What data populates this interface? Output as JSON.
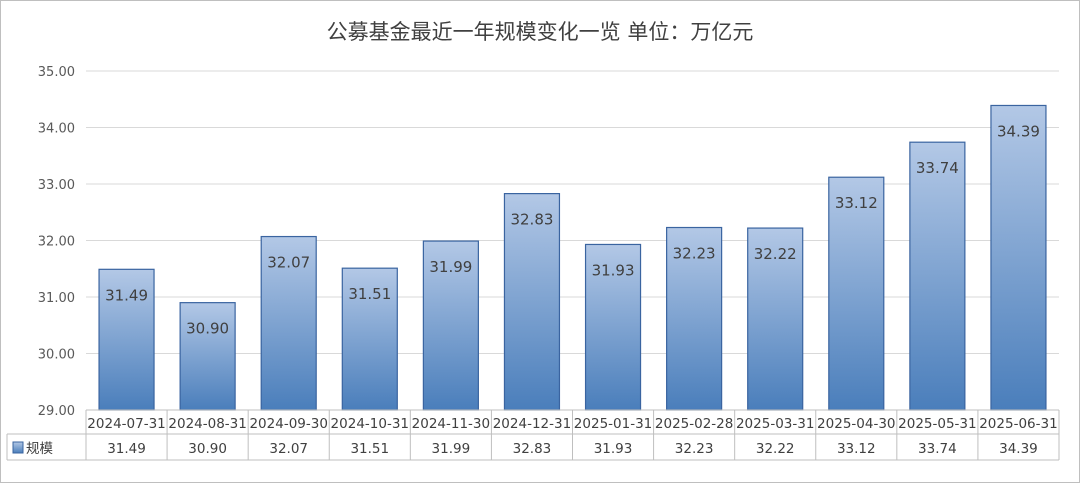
{
  "chart_data": {
    "type": "bar",
    "title": "公募基金最近一年规模变化一览 单位：万亿元",
    "categories": [
      "2024-07-31",
      "2024-08-31",
      "2024-09-30",
      "2024-10-31",
      "2024-11-30",
      "2024-12-31",
      "2025-01-31",
      "2025-02-28",
      "2025-03-31",
      "2025-04-30",
      "2025-05-31",
      "2025-06-31"
    ],
    "series": [
      {
        "name": "规模",
        "values": [
          31.49,
          30.9,
          32.07,
          31.51,
          31.99,
          32.83,
          31.93,
          32.23,
          32.22,
          33.12,
          33.74,
          34.39
        ]
      }
    ],
    "value_labels": [
      "31.49",
      "30.90",
      "32.07",
      "31.51",
      "31.99",
      "32.83",
      "31.93",
      "32.23",
      "32.22",
      "33.12",
      "33.74",
      "34.39"
    ],
    "y_ticks": [
      "29.00",
      "30.00",
      "31.00",
      "32.00",
      "33.00",
      "34.00",
      "35.00"
    ],
    "ylim": [
      29,
      35
    ],
    "grid": true,
    "legend": "data-table",
    "data_table": true,
    "colors": {
      "bar_top": "#b3c8e6",
      "bar_bottom": "#4a7ebb",
      "bar_stroke": "#3a64a0",
      "grid": "#d9d9d9",
      "text": "#404040"
    }
  }
}
